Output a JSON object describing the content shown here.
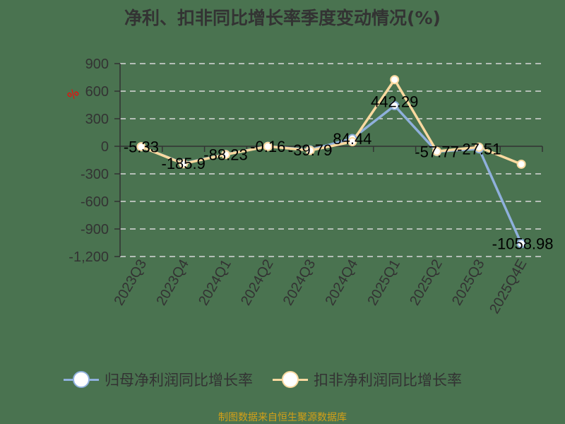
{
  "title": "净利、扣非同比增长率季度变动情况(%)",
  "unit_label": "%",
  "footer": "制图数据来自恒生聚源数据库",
  "colors": {
    "background": "#4a7350",
    "series_parent": "#8fb0dc",
    "series_deducted": "#fbd9a0",
    "footer": "#d4a017",
    "unit": "#ff0000"
  },
  "legend": [
    {
      "label": "归母净利润同比增长率",
      "color": "#8fb0dc"
    },
    {
      "label": "扣非净利润同比增长率",
      "color": "#fbd9a0"
    }
  ],
  "chart_data": {
    "type": "line",
    "title": "净利、扣非同比增长率季度变动情况(%)",
    "xlabel": "",
    "ylabel": "%",
    "ylim": [
      -1200,
      900
    ],
    "yticks": [
      900,
      600,
      300,
      0,
      -300,
      -600,
      -900,
      -1200
    ],
    "ytick_labels": [
      "900",
      "600",
      "300",
      "0",
      "-300",
      "-600",
      "-900",
      "-1,200"
    ],
    "grid": "horizontal dashed",
    "legend_position": "bottom",
    "categories": [
      "2023Q3",
      "2023Q4",
      "2024Q1",
      "2024Q2",
      "2024Q3",
      "2024Q4",
      "2025Q1",
      "2025Q2",
      "2025Q3",
      "2025Q4E"
    ],
    "series": [
      {
        "name": "归母净利润同比增长率",
        "values": [
          -5.33,
          -185.9,
          -88.23,
          -0.16,
          -39.79,
          84.44,
          442.29,
          -57.77,
          -27.51,
          -1058.98
        ],
        "labels": [
          "-5.33",
          "-185.9",
          "-88.23",
          "-0.16",
          "-39.79",
          "84.44",
          "442.29",
          "-57.77",
          "-27.51",
          "-1058.98"
        ]
      },
      {
        "name": "扣非净利润同比增长率",
        "values": [
          -5,
          -190,
          -90,
          -2,
          -45,
          50,
          725,
          -55,
          -10,
          -195
        ]
      }
    ]
  }
}
